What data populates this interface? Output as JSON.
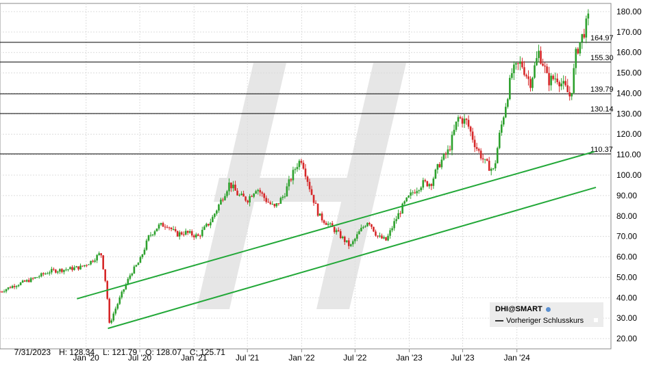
{
  "chart_data": {
    "type": "candlestick",
    "ticker": "DHI@SMART",
    "x_tick_labels": [
      "Jan '20",
      "Jul '20",
      "Jan '21",
      "Jul '21",
      "Jan '22",
      "Jul '22",
      "Jan '23",
      "Jul '23",
      "Jan '24"
    ],
    "y_tick_labels": [
      "20.00",
      "30.00",
      "40.00",
      "50.00",
      "60.00",
      "70.00",
      "80.00",
      "90.00",
      "100.00",
      "110.00",
      "120.00",
      "130.00",
      "140.00",
      "150.00",
      "160.00",
      "170.00",
      "180.00"
    ],
    "ylim": [
      15,
      184
    ],
    "xlim": [
      "2019-03-15",
      "2024-11-15"
    ],
    "grid": true,
    "horizontal_levels": [
      {
        "value": 164.97,
        "label": "164.97"
      },
      {
        "value": 155.3,
        "label": "155.30"
      },
      {
        "value": 139.79,
        "label": "139.79"
      },
      {
        "value": 130.14,
        "label": "130.14"
      },
      {
        "value": 110.37,
        "label": "110.37"
      }
    ],
    "trend_lines": [
      {
        "from": [
          "2019-12-01",
          39.5
        ],
        "to": [
          "2024-09-20",
          111.5
        ]
      },
      {
        "from": [
          "2020-03-15",
          25.0
        ],
        "to": [
          "2024-09-25",
          94.0
        ]
      }
    ],
    "price_path": [
      [
        "2019-03-15",
        43
      ],
      [
        "2019-05-01",
        46
      ],
      [
        "2019-07-01",
        49
      ],
      [
        "2019-09-01",
        53
      ],
      [
        "2019-11-01",
        54
      ],
      [
        "2019-12-15",
        55
      ],
      [
        "2020-01-20",
        58
      ],
      [
        "2020-02-20",
        62
      ],
      [
        "2020-03-10",
        45
      ],
      [
        "2020-03-20",
        27
      ],
      [
        "2020-04-05",
        33
      ],
      [
        "2020-05-01",
        42
      ],
      [
        "2020-06-01",
        52
      ],
      [
        "2020-07-01",
        58
      ],
      [
        "2020-08-01",
        70
      ],
      [
        "2020-09-01",
        75
      ],
      [
        "2020-10-01",
        76
      ],
      [
        "2020-11-01",
        71
      ],
      [
        "2020-12-01",
        72
      ],
      [
        "2021-01-15",
        70
      ],
      [
        "2021-03-01",
        78
      ],
      [
        "2021-05-01",
        96
      ],
      [
        "2021-06-01",
        90
      ],
      [
        "2021-07-01",
        88
      ],
      [
        "2021-08-01",
        94
      ],
      [
        "2021-09-01",
        88
      ],
      [
        "2021-10-01",
        84
      ],
      [
        "2021-11-01",
        90
      ],
      [
        "2021-12-15",
        105
      ],
      [
        "2022-01-01",
        108
      ],
      [
        "2022-02-01",
        92
      ],
      [
        "2022-03-01",
        80
      ],
      [
        "2022-04-01",
        76
      ],
      [
        "2022-05-01",
        72
      ],
      [
        "2022-06-15",
        65
      ],
      [
        "2022-07-15",
        72
      ],
      [
        "2022-08-15",
        78
      ],
      [
        "2022-09-15",
        70
      ],
      [
        "2022-10-15",
        68
      ],
      [
        "2022-11-15",
        78
      ],
      [
        "2022-12-15",
        86
      ],
      [
        "2023-01-15",
        92
      ],
      [
        "2023-02-15",
        96
      ],
      [
        "2023-03-15",
        96
      ],
      [
        "2023-04-15",
        106
      ],
      [
        "2023-05-15",
        112
      ],
      [
        "2023-06-15",
        128
      ],
      [
        "2023-07-15",
        126
      ],
      [
        "2023-08-15",
        114
      ],
      [
        "2023-09-15",
        106
      ],
      [
        "2023-10-15",
        102
      ],
      [
        "2023-11-01",
        118
      ],
      [
        "2023-12-15",
        150
      ],
      [
        "2024-01-15",
        155
      ],
      [
        "2024-02-15",
        145
      ],
      [
        "2024-03-15",
        160
      ],
      [
        "2024-04-01",
        154
      ],
      [
        "2024-04-15",
        146
      ],
      [
        "2024-05-15",
        148
      ],
      [
        "2024-06-15",
        142
      ],
      [
        "2024-07-01",
        138
      ],
      [
        "2024-07-20",
        160
      ],
      [
        "2024-08-15",
        170
      ],
      [
        "2024-09-01",
        177
      ]
    ]
  },
  "ohlc_readout": {
    "date": "7/31/2023",
    "high": "H: 128.34",
    "low": "L: 121.79",
    "open": "O: 128.07",
    "close": "C: 125.71"
  },
  "legend": {
    "ticker_label": "DHI@SMART",
    "prev_close_label": "Vorheriger Schlusskurs"
  },
  "colors": {
    "up": "#2ca02c",
    "down": "#d62728",
    "trend": "#22a838",
    "level": "#000000",
    "grid": "#dcdcdc",
    "watermark": "#e6e6e6"
  }
}
